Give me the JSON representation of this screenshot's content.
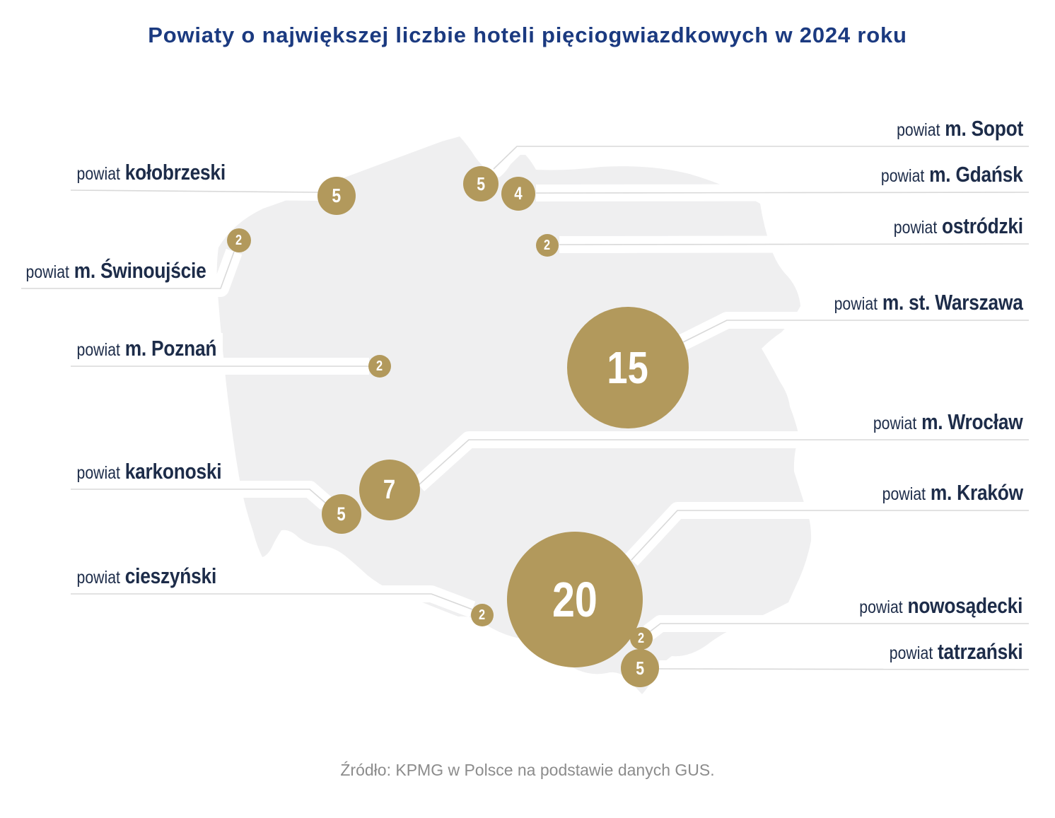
{
  "title": "Powiaty o największej liczbie hoteli pięciogwiazdkowych w 2024 roku",
  "source": "Źródło: KPMG w Polsce na podstawie danych GUS.",
  "colors": {
    "bubble_gold": "#b2995c",
    "title_blue": "#1b3a80",
    "label_navy": "#1d2c49",
    "map_gray": "#efeff0",
    "leader_line_gray": "#d9d9d9",
    "source_gray": "#8c8c8c"
  },
  "chart_data": {
    "type": "bubble-map",
    "region": "Polska",
    "title": "Powiaty o największej liczbie hoteli pięciogwiazdkowych w 2024 roku",
    "legend_position": "none",
    "points": [
      {
        "id": "kolobrzeski",
        "prefix": "powiat",
        "name": "kołobrzeski",
        "value": 5,
        "label_side": "left"
      },
      {
        "id": "swinoujscie",
        "prefix": "powiat",
        "name": "m. Świnoujście",
        "value": 2,
        "label_side": "left"
      },
      {
        "id": "poznan",
        "prefix": "powiat",
        "name": "m. Poznań",
        "value": 2,
        "label_side": "left"
      },
      {
        "id": "karkonoski",
        "prefix": "powiat",
        "name": "karkonoski",
        "value": 5,
        "label_side": "left"
      },
      {
        "id": "cieszynski",
        "prefix": "powiat",
        "name": "cieszyński",
        "value": 2,
        "label_side": "left"
      },
      {
        "id": "sopot",
        "prefix": "powiat",
        "name": "m. Sopot",
        "value": 5,
        "label_side": "right"
      },
      {
        "id": "gdansk",
        "prefix": "powiat",
        "name": "m. Gdańsk",
        "value": 4,
        "label_side": "right"
      },
      {
        "id": "ostrodzki",
        "prefix": "powiat",
        "name": "ostródzki",
        "value": 2,
        "label_side": "right"
      },
      {
        "id": "warszawa",
        "prefix": "powiat",
        "name": "m. st. Warszawa",
        "value": 15,
        "label_side": "right"
      },
      {
        "id": "wroclaw",
        "prefix": "powiat",
        "name": "m. Wrocław",
        "value": 7,
        "label_side": "right"
      },
      {
        "id": "krakow",
        "prefix": "powiat",
        "name": "m. Kraków",
        "value": 20,
        "label_side": "right"
      },
      {
        "id": "nowosadecki",
        "prefix": "powiat",
        "name": "nowosądecki",
        "value": 2,
        "label_side": "right"
      },
      {
        "id": "tatrzanski",
        "prefix": "powiat",
        "name": "tatrzański",
        "value": 5,
        "label_side": "right"
      }
    ]
  }
}
